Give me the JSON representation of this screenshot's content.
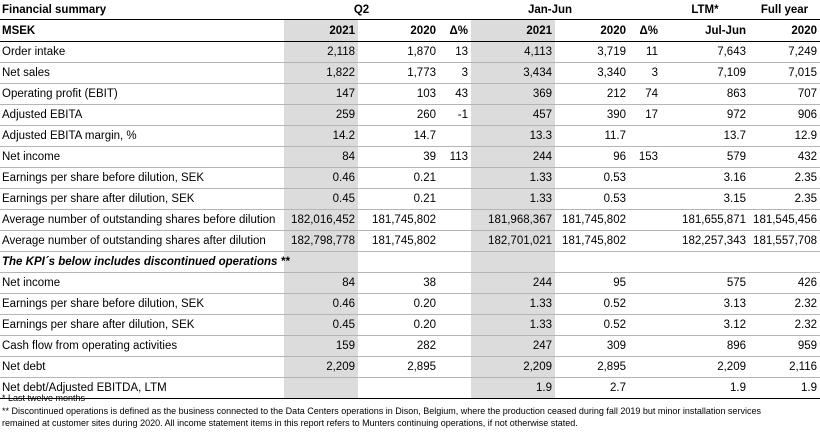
{
  "header": {
    "title": "Financial summary",
    "groups": {
      "q2": "Q2",
      "janjun": "Jan-Jun",
      "ltm": "LTM*",
      "full_year": "Full year"
    },
    "unit_label": "MSEK",
    "columns": [
      "2021",
      "2020",
      "Δ%",
      "2021",
      "2020",
      "Δ%",
      "Jul-Jun",
      "2020"
    ]
  },
  "rows": [
    {
      "label": "Order intake",
      "values": [
        "2,118",
        "1,870",
        "13",
        "4,113",
        "3,719",
        "11",
        "7,643",
        "7,249"
      ]
    },
    {
      "label": "Net sales",
      "values": [
        "1,822",
        "1,773",
        "3",
        "3,434",
        "3,340",
        "3",
        "7,109",
        "7,015"
      ]
    },
    {
      "label": "Operating profit (EBIT)",
      "values": [
        "147",
        "103",
        "43",
        "369",
        "212",
        "74",
        "863",
        "707"
      ]
    },
    {
      "label": "Adjusted EBITA",
      "values": [
        "259",
        "260",
        "-1",
        "457",
        "390",
        "17",
        "972",
        "906"
      ]
    },
    {
      "label": "Adjusted EBITA margin, %",
      "values": [
        "14.2",
        "14.7",
        "",
        "13.3",
        "11.7",
        "",
        "13.7",
        "12.9"
      ]
    },
    {
      "label": "Net income",
      "values": [
        "84",
        "39",
        "113",
        "244",
        "96",
        "153",
        "579",
        "432"
      ]
    },
    {
      "label": "Earnings per share before dilution, SEK",
      "values": [
        "0.46",
        "0.21",
        "",
        "1.33",
        "0.53",
        "",
        "3.16",
        "2.35"
      ]
    },
    {
      "label": "Earnings per share after dilution, SEK",
      "values": [
        "0.45",
        "0.21",
        "",
        "1.33",
        "0.53",
        "",
        "3.15",
        "2.35"
      ]
    },
    {
      "label": "Average number of outstanding shares before dilution",
      "values": [
        "182,016,452",
        "181,745,802",
        "",
        "181,968,367",
        "181,745,802",
        "",
        "181,655,871",
        "181,545,456"
      ]
    },
    {
      "label": "Average number of outstanding shares after dilution",
      "values": [
        "182,798,778",
        "181,745,802",
        "",
        "182,701,021",
        "181,745,802",
        "",
        "182,257,343",
        "181,557,708"
      ]
    }
  ],
  "section_title": "The KPI´s below includes discontinued operations **",
  "rows2": [
    {
      "label": "Net income",
      "values": [
        "84",
        "38",
        "",
        "244",
        "95",
        "",
        "575",
        "426"
      ]
    },
    {
      "label": "Earnings per share before dilution, SEK",
      "values": [
        "0.46",
        "0.20",
        "",
        "1.33",
        "0.52",
        "",
        "3.13",
        "2.32"
      ]
    },
    {
      "label": "Earnings per share after dilution, SEK",
      "values": [
        "0.45",
        "0.20",
        "",
        "1.33",
        "0.52",
        "",
        "3.12",
        "2.32"
      ]
    },
    {
      "label": "Cash flow from operating activities",
      "values": [
        "159",
        "282",
        "",
        "247",
        "309",
        "",
        "896",
        "959"
      ]
    },
    {
      "label": "Net debt",
      "values": [
        "2,209",
        "2,895",
        "",
        "2,209",
        "2,895",
        "",
        "2,209",
        "2,116"
      ]
    },
    {
      "label": "Net debt/Adjusted EBITDA, LTM",
      "values": [
        "",
        "",
        "",
        "1.9",
        "2.7",
        "",
        "1.9",
        "1.9"
      ]
    }
  ],
  "footnotes": {
    "ltm": "* Last twelve months",
    "discontinued": "** Discontinued operations is defined as the business connected to the Data Centers operations in Dison, Belgium, where the production ceased during fall 2019 but minor installation services remained at customer sites during 2020. All income statement items in this report refers to Munters continuing operations, if not otherwise stated."
  }
}
